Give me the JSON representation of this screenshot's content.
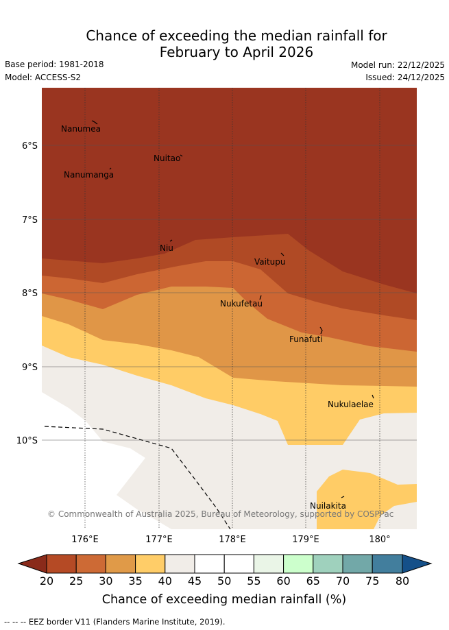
{
  "title_line1": "Chance of exceeding the median rainfall for",
  "title_line2": "February to April 2026",
  "base_period": "Base period: 1981-2018",
  "model": "Model: ACCESS-S2",
  "model_run": "Model run: 22/12/2025",
  "issued": "Issued: 24/12/2025",
  "lat_labels": [
    "6°S",
    "7°S",
    "8°S",
    "9°S",
    "10°S"
  ],
  "lon_labels": [
    "176°E",
    "177°E",
    "178°E",
    "179°E",
    "180°"
  ],
  "islands": [
    "Nanumea",
    "Nuitao",
    "Nanumanga",
    "Niu",
    "Vaitupu",
    "Nukufetau",
    "Funafuti",
    "Nukulaelae",
    "Nuilakita"
  ],
  "copyright": "© Commonwealth of Australia 2025, Bureau of Meteorology, supported by COSPPac",
  "colorbar_ticks": [
    "20",
    "25",
    "30",
    "35",
    "40",
    "45",
    "50",
    "55",
    "60",
    "65",
    "70",
    "75",
    "80"
  ],
  "colorbar_label": "Chance of exceeding median rainfall (%)",
  "colors": {
    "lt20": "#8a2a1a",
    "c20_25": "#b54a25",
    "c25_30": "#cd6a35",
    "c30_35": "#e09a48",
    "c35_40": "#ffcd68",
    "c40_45": "#f1ede8",
    "c45_55": "#ffffff",
    "c55_60": "#eaf5e7",
    "c60_65": "#ccffcc",
    "c65_70": "#9fd1bd",
    "c70_75": "#72a8a8",
    "c75_80": "#427e9d",
    "gt80": "#155089",
    "map_lt20": "#9a3520"
  },
  "eez_note": "-- -- -- EEZ border V11 (Flanders Marine Institute, 2019)."
}
